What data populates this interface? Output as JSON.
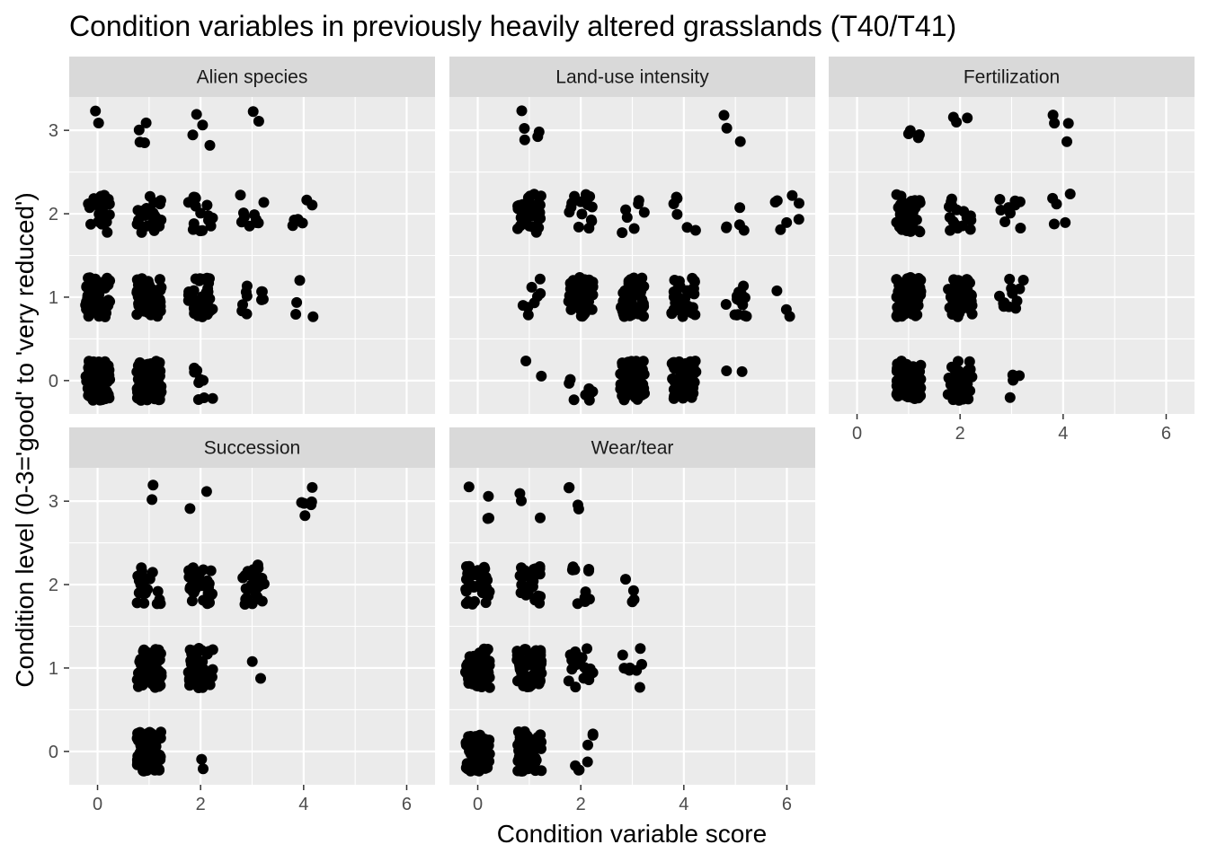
{
  "chart_data": {
    "type": "scatter",
    "title": "Condition variables in previously heavily altered grasslands (T40/T41)",
    "xlabel": "Condition variable score",
    "ylabel": "Condition level (0-3='good' to 'very reduced')",
    "xlim": [
      -0.55,
      6.55
    ],
    "ylim": [
      -0.4,
      3.4
    ],
    "x_ticks": [
      0,
      2,
      4,
      6
    ],
    "y_ticks": [
      0,
      1,
      2,
      3
    ],
    "grid": true,
    "jitter": {
      "x": 0.25,
      "y": 0.25
    },
    "point_color": "#000000",
    "panel_background": "#ebebeb",
    "strip_background": "#d9d9d9",
    "facets": [
      {
        "name": "Alien species",
        "clusters": [
          {
            "x": 0,
            "y": 0,
            "n": 90
          },
          {
            "x": 1,
            "y": 0,
            "n": 80
          },
          {
            "x": 2,
            "y": 0,
            "n": 9
          },
          {
            "x": 0,
            "y": 1,
            "n": 70
          },
          {
            "x": 1,
            "y": 1,
            "n": 65
          },
          {
            "x": 2,
            "y": 1,
            "n": 45
          },
          {
            "x": 3,
            "y": 1,
            "n": 10
          },
          {
            "x": 4,
            "y": 1,
            "n": 4
          },
          {
            "x": 0,
            "y": 2,
            "n": 22
          },
          {
            "x": 1,
            "y": 2,
            "n": 25
          },
          {
            "x": 2,
            "y": 2,
            "n": 16
          },
          {
            "x": 3,
            "y": 2,
            "n": 10
          },
          {
            "x": 4,
            "y": 2,
            "n": 6
          },
          {
            "x": 0,
            "y": 3,
            "n": 2
          },
          {
            "x": 1,
            "y": 3,
            "n": 4
          },
          {
            "x": 2,
            "y": 3,
            "n": 4
          },
          {
            "x": 3,
            "y": 3,
            "n": 2
          }
        ]
      },
      {
        "name": "Land-use intensity",
        "clusters": [
          {
            "x": 1,
            "y": 0,
            "n": 2
          },
          {
            "x": 2,
            "y": 0,
            "n": 8
          },
          {
            "x": 3,
            "y": 0,
            "n": 70
          },
          {
            "x": 4,
            "y": 0,
            "n": 60
          },
          {
            "x": 5,
            "y": 0,
            "n": 2
          },
          {
            "x": 1,
            "y": 1,
            "n": 8
          },
          {
            "x": 2,
            "y": 1,
            "n": 60
          },
          {
            "x": 3,
            "y": 1,
            "n": 50
          },
          {
            "x": 4,
            "y": 1,
            "n": 45
          },
          {
            "x": 5,
            "y": 1,
            "n": 15
          },
          {
            "x": 6,
            "y": 1,
            "n": 3
          },
          {
            "x": 1,
            "y": 2,
            "n": 40
          },
          {
            "x": 2,
            "y": 2,
            "n": 14
          },
          {
            "x": 3,
            "y": 2,
            "n": 7
          },
          {
            "x": 4,
            "y": 2,
            "n": 6
          },
          {
            "x": 5,
            "y": 2,
            "n": 5
          },
          {
            "x": 6,
            "y": 2,
            "n": 7
          },
          {
            "x": 1,
            "y": 3,
            "n": 5
          },
          {
            "x": 5,
            "y": 3,
            "n": 3
          }
        ]
      },
      {
        "name": "Fertilization",
        "clusters": [
          {
            "x": 1,
            "y": 0,
            "n": 90
          },
          {
            "x": 2,
            "y": 0,
            "n": 40
          },
          {
            "x": 3,
            "y": 0,
            "n": 4
          },
          {
            "x": 1,
            "y": 1,
            "n": 75
          },
          {
            "x": 2,
            "y": 1,
            "n": 45
          },
          {
            "x": 3,
            "y": 1,
            "n": 12
          },
          {
            "x": 1,
            "y": 2,
            "n": 35
          },
          {
            "x": 2,
            "y": 2,
            "n": 16
          },
          {
            "x": 3,
            "y": 2,
            "n": 9
          },
          {
            "x": 4,
            "y": 2,
            "n": 5
          },
          {
            "x": 1,
            "y": 3,
            "n": 4
          },
          {
            "x": 2,
            "y": 3,
            "n": 3
          },
          {
            "x": 4,
            "y": 3,
            "n": 4
          }
        ]
      },
      {
        "name": "Succession",
        "clusters": [
          {
            "x": 1,
            "y": 0,
            "n": 100
          },
          {
            "x": 2,
            "y": 0,
            "n": 2
          },
          {
            "x": 1,
            "y": 1,
            "n": 70
          },
          {
            "x": 2,
            "y": 1,
            "n": 55
          },
          {
            "x": 3,
            "y": 1,
            "n": 2
          },
          {
            "x": 1,
            "y": 2,
            "n": 20
          },
          {
            "x": 2,
            "y": 2,
            "n": 35
          },
          {
            "x": 3,
            "y": 2,
            "n": 28
          },
          {
            "x": 1,
            "y": 3,
            "n": 2
          },
          {
            "x": 2,
            "y": 3,
            "n": 2
          },
          {
            "x": 4,
            "y": 3,
            "n": 6
          }
        ]
      },
      {
        "name": "Wear/tear",
        "clusters": [
          {
            "x": 0,
            "y": 0,
            "n": 60
          },
          {
            "x": 1,
            "y": 0,
            "n": 65
          },
          {
            "x": 2,
            "y": 0,
            "n": 7
          },
          {
            "x": 0,
            "y": 1,
            "n": 60
          },
          {
            "x": 1,
            "y": 1,
            "n": 70
          },
          {
            "x": 2,
            "y": 1,
            "n": 22
          },
          {
            "x": 3,
            "y": 1,
            "n": 9
          },
          {
            "x": 0,
            "y": 2,
            "n": 28
          },
          {
            "x": 1,
            "y": 2,
            "n": 25
          },
          {
            "x": 2,
            "y": 2,
            "n": 12
          },
          {
            "x": 3,
            "y": 2,
            "n": 4
          },
          {
            "x": 0,
            "y": 3,
            "n": 4
          },
          {
            "x": 1,
            "y": 3,
            "n": 3
          },
          {
            "x": 2,
            "y": 3,
            "n": 4
          }
        ]
      }
    ]
  }
}
